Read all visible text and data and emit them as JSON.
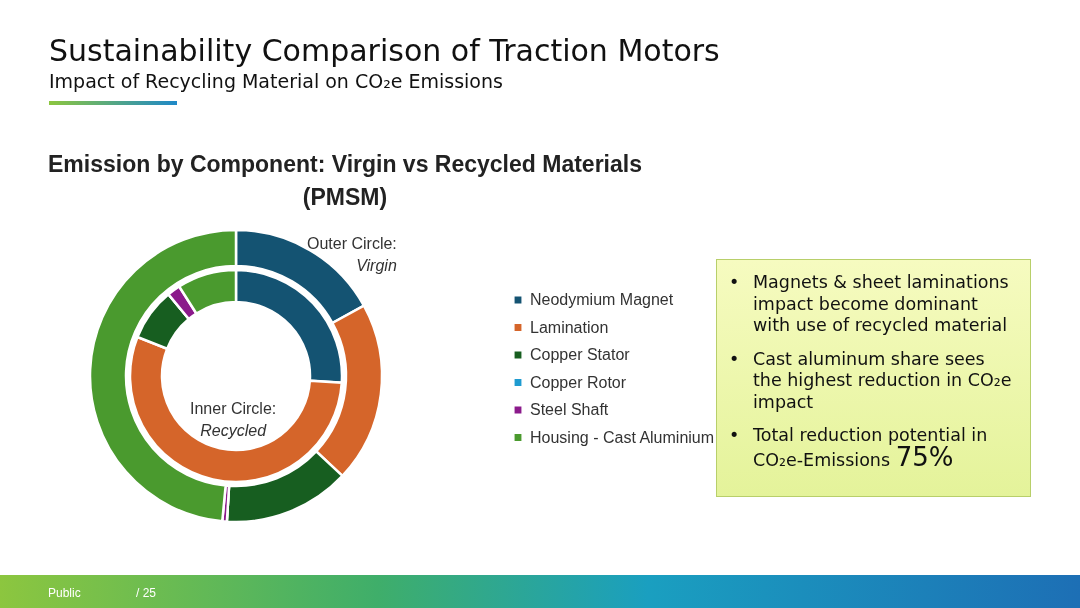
{
  "chart_data": {
    "type": "donut",
    "title": "Sustainability Comparison of Traction Motors",
    "subtitle": "Impact of Recycling Material on CO₂e Emissions",
    "categories": [
      "Neodymium Magnet",
      "Lamination",
      "Copper Stator",
      "Copper Rotor",
      "Steel Shaft",
      "Housing - Cast Aluminium"
    ],
    "colors": [
      "#145372",
      "#d5652a",
      "#175e20",
      "#1f9bd0",
      "#8b1a8b",
      "#4a9a2e"
    ],
    "series": [
      {
        "name": "Virgin",
        "values": [
          17,
          20,
          14,
          0,
          0.5,
          48.5
        ]
      },
      {
        "name": "Recycled",
        "values": [
          26,
          55,
          8,
          0,
          2,
          9
        ]
      }
    ],
    "legend": "right",
    "annotations": [
      "Emission by Component: Virgin vs Recycled Materials (PMSM)",
      "Outer Circle:",
      "Inner Circle:",
      "• Magnets & sheet laminations impact become dominant with use of recycled material",
      "• Cast aluminum share sees the highest reduction in CO₂e impact",
      "• Total reduction potential in CO₂e-Emissions 75%",
      "Public",
      "/ 25"
    ]
  }
}
